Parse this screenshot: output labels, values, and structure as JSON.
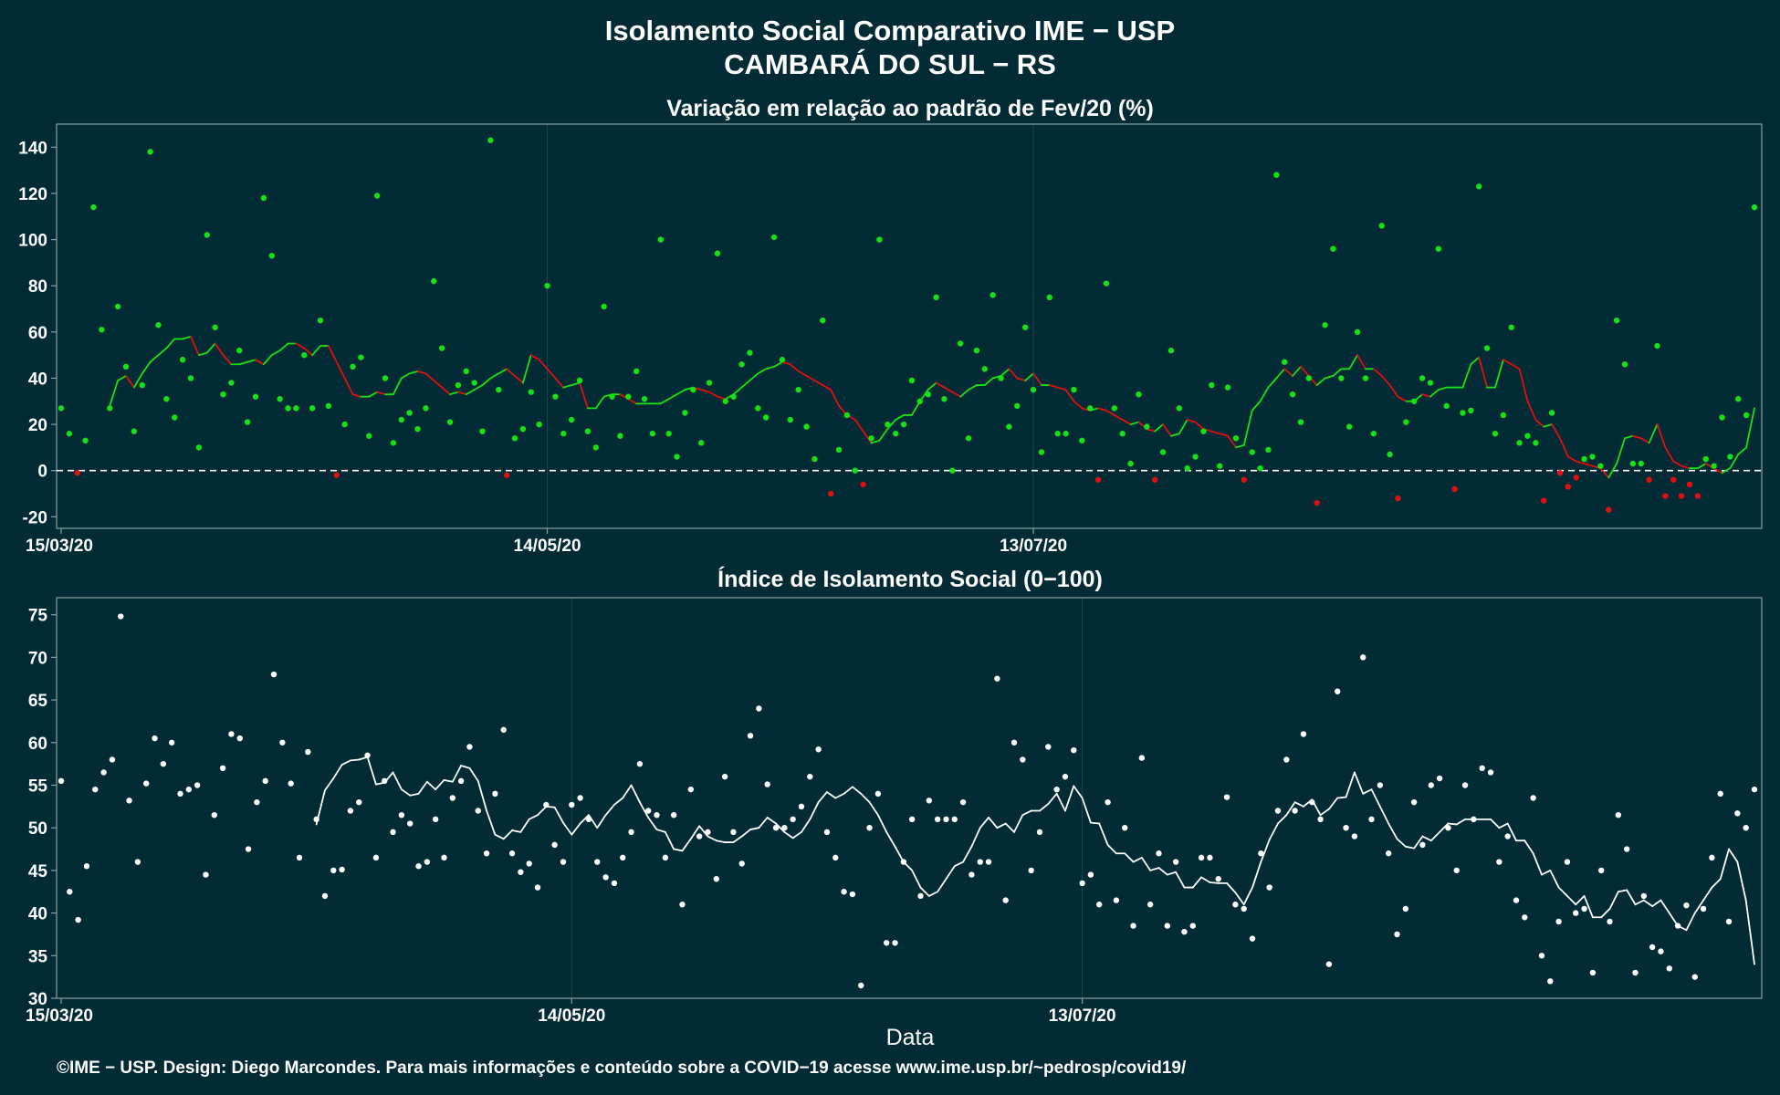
{
  "title_line1": "Isolamento Social Comparativo IME − USP",
  "title_line2": "CAMBARÁ DO SUL − RS",
  "xlabel": "Data",
  "footer": "©IME − USP. Design: Diego Marcondes. Para mais informações e conteúdo sobre a COVID−19 acesse www.ime.usp.br/~pedrosp/covid19/",
  "colors": {
    "background": "#022b35",
    "positive": "#16e016",
    "negative": "#e01010",
    "index": "#ffffff"
  },
  "chart_data": [
    {
      "type": "scatter",
      "title": "Variação em relação ao padrão de Fev/20 (%)",
      "x_start": "15/03/20",
      "x_ticks": [
        "15/03/20",
        "14/05/20",
        "13/07/20"
      ],
      "ylim": [
        -25,
        150
      ],
      "y_ticks": [
        -20,
        0,
        20,
        40,
        60,
        80,
        100,
        120,
        140
      ],
      "reference_line": 0,
      "grid": true,
      "series": [
        {
          "kind": "points",
          "values": [
            27,
            16,
            -1,
            13,
            114,
            61,
            27,
            71,
            45,
            17,
            37,
            138,
            63,
            31,
            23,
            48,
            40,
            10,
            102,
            62,
            33,
            38,
            52,
            21,
            32,
            118,
            93,
            31,
            27,
            27,
            50,
            27,
            65,
            28,
            -2,
            20,
            45,
            49,
            15,
            119,
            40,
            12,
            22,
            25,
            18,
            27,
            82,
            53,
            21,
            37,
            43,
            38,
            17,
            143,
            35,
            -2,
            14,
            18,
            34,
            20,
            80,
            32,
            16,
            22,
            39,
            17,
            10,
            71,
            32,
            15,
            32,
            43,
            31,
            16,
            100,
            16,
            6,
            25,
            35,
            12,
            38,
            94,
            30,
            32,
            46,
            51,
            27,
            23,
            101,
            48,
            22,
            35,
            19,
            5,
            65,
            -10,
            9,
            24,
            0,
            -6,
            14,
            100,
            20,
            16,
            20,
            39,
            30,
            33,
            75,
            31,
            0,
            55,
            14,
            52,
            44,
            76,
            40,
            19,
            28,
            62,
            35,
            8,
            75,
            16,
            16,
            35,
            13,
            27,
            -4,
            81,
            27,
            16,
            3,
            33,
            19,
            -4,
            8,
            52,
            27,
            1,
            6,
            17,
            37,
            2,
            36,
            14,
            -4,
            8,
            1,
            9,
            128,
            47,
            33,
            21,
            40,
            -14,
            63,
            96,
            40,
            19,
            60,
            40,
            16,
            106,
            7,
            -12,
            21,
            30,
            40,
            38,
            96,
            28,
            -8,
            25,
            26,
            123,
            53,
            16,
            24,
            62,
            12,
            15,
            12,
            -13,
            25,
            -1,
            -7,
            -3,
            5,
            6,
            2,
            -17,
            65,
            46,
            3,
            3,
            -4,
            54,
            -11,
            -4,
            -11,
            -6,
            -11,
            5,
            2,
            23,
            6,
            31,
            24,
            114
          ]
        },
        {
          "kind": "moving_average",
          "values": [
            28,
            39,
            41,
            36,
            42,
            47,
            50,
            53,
            57,
            57,
            58,
            50,
            51,
            55,
            50,
            46,
            46,
            47,
            48,
            46,
            50,
            52,
            55,
            55,
            53,
            50,
            54,
            54,
            47,
            40,
            33,
            32,
            32,
            34,
            33,
            33,
            40,
            42,
            43,
            42,
            39,
            36,
            33,
            34,
            33,
            35,
            37,
            40,
            42,
            44,
            41,
            38,
            50,
            48,
            44,
            40,
            36,
            37,
            38,
            27,
            27,
            32,
            33,
            33,
            31,
            29,
            29,
            29,
            29,
            31,
            33,
            35,
            36,
            35,
            34,
            32,
            31,
            33,
            36,
            39,
            42,
            44,
            45,
            47,
            46,
            43,
            41,
            39,
            37,
            35,
            28,
            24,
            22,
            17,
            12,
            13,
            18,
            22,
            24,
            24,
            30,
            35,
            38,
            36,
            34,
            32,
            35,
            37,
            37,
            40,
            41,
            44,
            40,
            39,
            42,
            37,
            37,
            36,
            35,
            30,
            27,
            26,
            27,
            26,
            24,
            22,
            20,
            21,
            18,
            17,
            20,
            15,
            16,
            22,
            21,
            18,
            17,
            16,
            15,
            10,
            11,
            26,
            30,
            36,
            40,
            44,
            41,
            45,
            41,
            37,
            40,
            41,
            44,
            44,
            50,
            44,
            44,
            41,
            37,
            32,
            30,
            30,
            33,
            32,
            35,
            36,
            36,
            36,
            46,
            49,
            36,
            36,
            48,
            46,
            44,
            30,
            22,
            19,
            20,
            14,
            6,
            4,
            3,
            2,
            1,
            -3,
            3,
            14,
            15,
            14,
            12,
            20,
            10,
            4,
            2,
            1,
            1,
            3,
            1,
            -1,
            1,
            7,
            10,
            27
          ]
        }
      ]
    },
    {
      "type": "scatter",
      "title": "Índice de Isolamento Social (0−100)",
      "x_start": "15/03/20",
      "x_ticks": [
        "15/03/20",
        "14/05/20",
        "13/07/20"
      ],
      "ylim": [
        30,
        77
      ],
      "y_ticks": [
        30,
        35,
        40,
        45,
        50,
        55,
        60,
        65,
        70,
        75
      ],
      "grid": true,
      "series": [
        {
          "kind": "points",
          "values": [
            55.5,
            42.5,
            39.2,
            45.5,
            54.5,
            56.5,
            58,
            74.8,
            53.2,
            46,
            55.2,
            60.5,
            57.5,
            60,
            54,
            54.5,
            55,
            44.5,
            51.5,
            57,
            61,
            60.5,
            47.5,
            53,
            55.5,
            68,
            60,
            55.2,
            46.5,
            58.9,
            51,
            42,
            45,
            45.1,
            52,
            53,
            58.5,
            46.5,
            55.5,
            49.5,
            51.5,
            50.5,
            45.5,
            46,
            51,
            46.5,
            53.5,
            55.5,
            59.5,
            52,
            47,
            54,
            61.5,
            47,
            44.8,
            45.8,
            43,
            52.7,
            48,
            46,
            52.7,
            53.5,
            51,
            46,
            44.2,
            43.5,
            46.5,
            49.5,
            57.5,
            52,
            51.5,
            46.5,
            51.5,
            41,
            54.5,
            49,
            49.5,
            44,
            56,
            49.5,
            45.8,
            60.8,
            64,
            55.1,
            50,
            50,
            51,
            52.5,
            56,
            59.2,
            49.5,
            46.5,
            42.5,
            42.2,
            31.5,
            50,
            54,
            36.5,
            36.5,
            46,
            51,
            42,
            53.2,
            51,
            51,
            51,
            53,
            44.5,
            46,
            46,
            67.5,
            41.5,
            60,
            58,
            45,
            49.5,
            59.5,
            54.5,
            56,
            59.1,
            43.5,
            44.5,
            41,
            53,
            41.5,
            50,
            38.5,
            58.2,
            41,
            47,
            38.5,
            46,
            37.8,
            38.5,
            46.5,
            46.5,
            44,
            53.6,
            41,
            40.5,
            37,
            47,
            43,
            52,
            58,
            52,
            61,
            53,
            51,
            34,
            66,
            50,
            49,
            70,
            51,
            55,
            47,
            37.5,
            40.5,
            53,
            48,
            55,
            55.8,
            50,
            45,
            55,
            51,
            57,
            56.5,
            46,
            49,
            41.5,
            39.5,
            53.5,
            35,
            32,
            39,
            46,
            40,
            40.5,
            33,
            45,
            39,
            51.5,
            47.5,
            33,
            42,
            36,
            35.5,
            33.5,
            38.5,
            40.9,
            32.5,
            40.5,
            46.5,
            54,
            39,
            51.7,
            50,
            54.5
          ]
        },
        {
          "kind": "moving_average",
          "values": [
            50.4,
            54.4,
            55.8,
            57.4,
            57.9,
            58,
            58.3,
            55.1,
            55.3,
            56.5,
            54.5,
            53.8,
            54,
            55.4,
            54.5,
            55.6,
            55.4,
            57.3,
            57,
            55.5,
            52,
            49.2,
            48.7,
            49.7,
            49.5,
            51,
            51.5,
            52.5,
            52.4,
            50.6,
            49.2,
            50.5,
            51.5,
            50,
            51.5,
            52.7,
            53.5,
            55,
            53,
            51.2,
            49.8,
            49.5,
            47.5,
            47.3,
            48.7,
            50.2,
            49,
            48.5,
            48.3,
            48.3,
            49,
            49.8,
            50,
            51.2,
            50.5,
            49.5,
            48.8,
            49.5,
            51,
            53,
            54.2,
            53.5,
            54,
            54.8,
            54,
            53,
            51.5,
            49.5,
            47.8,
            46,
            45,
            43,
            42,
            42.5,
            44,
            45.5,
            46,
            47.8,
            50,
            51.2,
            50,
            50.5,
            49.5,
            51.5,
            52,
            52,
            52.8,
            54,
            52,
            54.9,
            53.5,
            50.6,
            50.5,
            48,
            47,
            47,
            46,
            46.5,
            45,
            45.3,
            44.5,
            44.8,
            43,
            43,
            44.2,
            43.6,
            43.5,
            43.5,
            42.4,
            41,
            43,
            46,
            48.6,
            50.5,
            51.5,
            53,
            52.5,
            53.3,
            51.5,
            52.2,
            53.5,
            53.6,
            56.5,
            54,
            54.5,
            52.5,
            50.5,
            48.7,
            47.8,
            47.6,
            49,
            48.5,
            49.5,
            50.5,
            50.4,
            51,
            51,
            51,
            51,
            50,
            50.5,
            48.5,
            48.5,
            47,
            44.5,
            45,
            43,
            42,
            41,
            42,
            39.5,
            39.5,
            40.5,
            42.5,
            42.7,
            41,
            41.5,
            40.8,
            41.5,
            40,
            38.5,
            38,
            40,
            41.5,
            43,
            44,
            47.5,
            46,
            41.5,
            34
          ]
        }
      ]
    }
  ]
}
